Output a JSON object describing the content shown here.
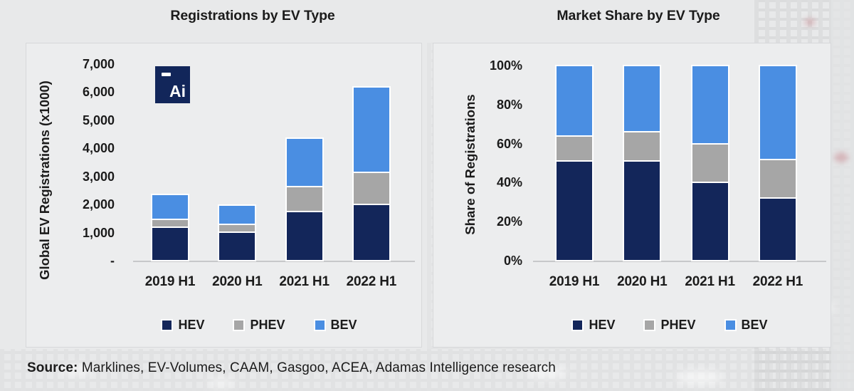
{
  "page": {
    "source_label": "Source:",
    "source_text": " Marklines, EV-Volumes, CAAM, Gasgoo, ACEA, Adamas Intelligence research"
  },
  "logo": {
    "text": "Ai"
  },
  "colors": {
    "hev": "#13265a",
    "phev": "#a6a6a6",
    "bev": "#4a8ee2"
  },
  "chart_data": [
    {
      "type": "bar",
      "stacked": true,
      "title": "Registrations by EV Type",
      "ylabel": "Global EV Registrations (x1000)",
      "xlabel": "",
      "categories": [
        "2019 H1",
        "2020 H1",
        "2021 H1",
        "2022 H1"
      ],
      "series": [
        {
          "name": "HEV",
          "color": "#13265a",
          "values": [
            1200,
            1000,
            1750,
            2000
          ]
        },
        {
          "name": "PHEV",
          "color": "#a6a6a6",
          "values": [
            280,
            300,
            890,
            1150
          ]
        },
        {
          "name": "BEV",
          "color": "#4a8ee2",
          "values": [
            880,
            680,
            1730,
            3050
          ]
        }
      ],
      "ylim": [
        0,
        7000
      ],
      "yticks": [
        {
          "value": 7000,
          "label": "7,000"
        },
        {
          "value": 6000,
          "label": "6,000"
        },
        {
          "value": 5000,
          "label": "5,000"
        },
        {
          "value": 4000,
          "label": "4,000"
        },
        {
          "value": 3000,
          "label": "3,000"
        },
        {
          "value": 2000,
          "label": "2,000"
        },
        {
          "value": 1000,
          "label": "1,000"
        },
        {
          "value": 0,
          "label": "-"
        }
      ],
      "grid": false,
      "legend_position": "bottom"
    },
    {
      "type": "bar",
      "stacked": true,
      "units": "percent",
      "title": "Market Share by EV Type",
      "ylabel": "Share of Registrations",
      "xlabel": "",
      "categories": [
        "2019 H1",
        "2020 H1",
        "2021 H1",
        "2022 H1"
      ],
      "series": [
        {
          "name": "HEV",
          "color": "#13265a",
          "values": [
            51,
            51,
            40,
            32
          ]
        },
        {
          "name": "PHEV",
          "color": "#a6a6a6",
          "values": [
            13,
            15,
            20,
            20
          ]
        },
        {
          "name": "BEV",
          "color": "#4a8ee2",
          "values": [
            36,
            34,
            40,
            48
          ]
        }
      ],
      "ylim": [
        0,
        100
      ],
      "yticks": [
        {
          "value": 100,
          "label": "100%"
        },
        {
          "value": 80,
          "label": "80%"
        },
        {
          "value": 60,
          "label": "60%"
        },
        {
          "value": 40,
          "label": "40%"
        },
        {
          "value": 20,
          "label": "20%"
        },
        {
          "value": 0,
          "label": "0%"
        }
      ],
      "grid": false,
      "legend_position": "bottom"
    }
  ]
}
